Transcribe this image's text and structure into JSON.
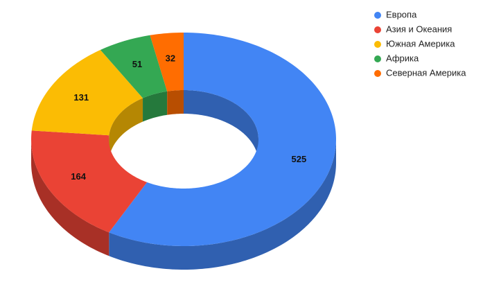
{
  "chart_data": {
    "type": "pie",
    "categories": [
      "Европа",
      "Азия и Океания",
      "Южная Америка",
      "Африка",
      "Северная Америка"
    ],
    "values": [
      525,
      164,
      131,
      51,
      32
    ],
    "colors": [
      "#4285f4",
      "#ea4335",
      "#fbbc04",
      "#34a853",
      "#ff6d01"
    ],
    "legend": "top-right"
  }
}
